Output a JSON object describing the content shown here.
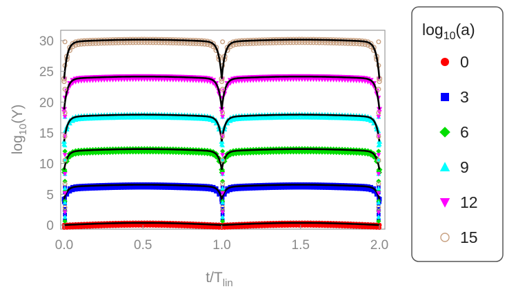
{
  "chart_data": {
    "type": "scatter",
    "title": "",
    "xlabel": "t/T",
    "xlabel_sub": "lin",
    "ylabel": "log",
    "ylabel_sub": "10",
    "ylabel_var": "(Y)",
    "xlim": [
      0,
      2
    ],
    "ylim": [
      0,
      31
    ],
    "x_ticks": [
      0,
      0.5,
      1,
      1.5,
      2
    ],
    "x_tick_labels": [
      "0.0",
      "0.5",
      "1.0",
      "1.5",
      "2.0"
    ],
    "y_ticks": [
      0,
      5,
      10,
      15,
      20,
      25,
      30
    ],
    "y_tick_labels": [
      "0",
      "5",
      "10",
      "15",
      "20",
      "25",
      "30"
    ],
    "grid": false,
    "legend": {
      "position": "right",
      "title_main": "log",
      "title_sub": "10",
      "title_var": "(a)"
    },
    "series": [
      {
        "name": "0",
        "color": "#ff0000",
        "marker": "circle",
        "plateau": 0.0,
        "edge_drop": 0.0
      },
      {
        "name": "3",
        "color": "#0000ff",
        "marker": "square",
        "plateau": 6.2,
        "edge_drop": 2.0
      },
      {
        "name": "6",
        "color": "#00dd00",
        "marker": "diamond",
        "plateau": 12.0,
        "edge_drop": 3.0
      },
      {
        "name": "9",
        "color": "#00ffff",
        "marker": "triangle-up",
        "plateau": 17.6,
        "edge_drop": 4.0
      },
      {
        "name": "12",
        "color": "#ff00ff",
        "marker": "triangle-down",
        "plateau": 23.8,
        "edge_drop": 5.0
      },
      {
        "name": "15",
        "color": "#c8a080",
        "marker": "open-circle",
        "plateau": 29.8,
        "edge_drop": 6.0
      }
    ]
  }
}
